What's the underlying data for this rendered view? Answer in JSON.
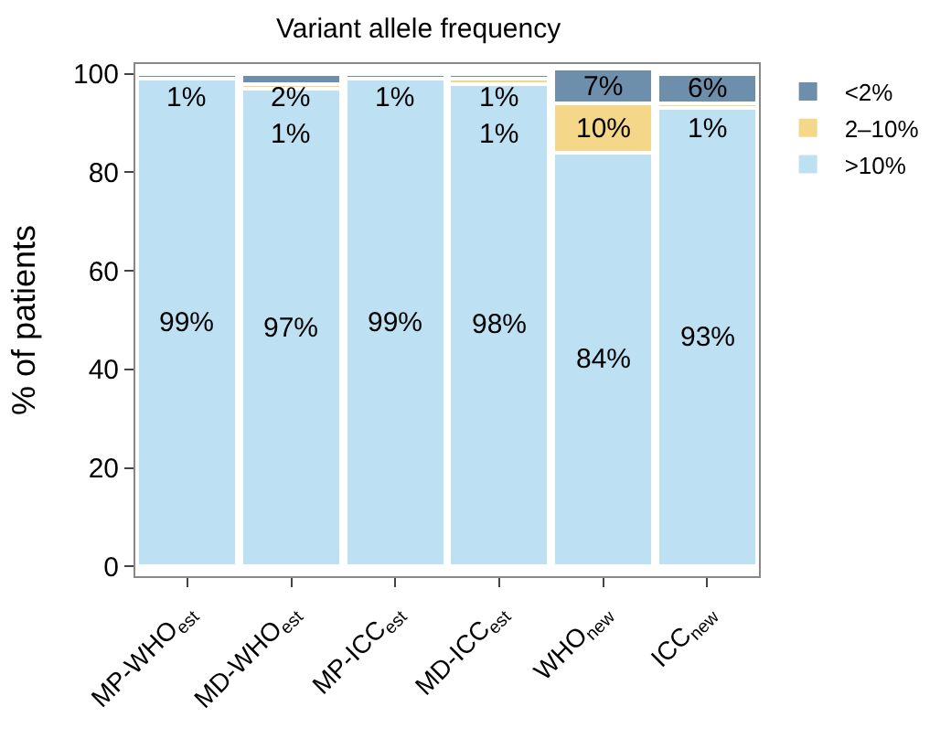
{
  "chart_data": {
    "type": "bar",
    "title": "Variant allele frequency",
    "ylabel": "% of patients",
    "categories": [
      "MP-WHO$_{est}$",
      "MD-WHO$_{est}$",
      "MP-ICC$_{est}$",
      "MD-ICC$_{est}$",
      "WHO$_{new}$",
      "ICC$_{new}$"
    ],
    "stacked": true,
    "series": [
      {
        "name": ">10%",
        "color": "#bde0f2",
        "values": [
          99,
          97,
          99,
          98,
          84,
          93
        ],
        "value_labels": [
          "99%",
          "97%",
          "99%",
          "98%",
          "84%",
          "93%"
        ]
      },
      {
        "name": "2–10%",
        "color": "#f5d78a",
        "values": [
          0,
          1,
          0,
          1,
          10,
          1
        ],
        "value_labels": [
          null,
          "1%",
          null,
          "1%",
          "10%",
          "1%"
        ]
      },
      {
        "name": "<2%",
        "color": "#6e8fab",
        "values": [
          1,
          2,
          1,
          1,
          7,
          6
        ],
        "value_labels": [
          "1%",
          "2%",
          "1%",
          "1%",
          "7%",
          "6%"
        ]
      }
    ],
    "ylim": [
      -2,
      102
    ],
    "yticks": [
      0,
      20,
      40,
      60,
      80,
      100
    ],
    "legend": "top right"
  }
}
